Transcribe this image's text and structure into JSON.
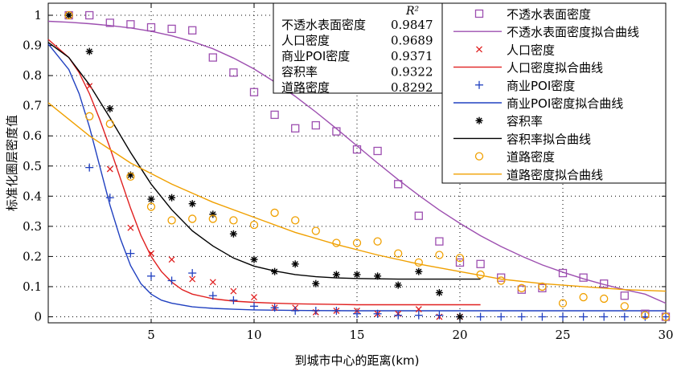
{
  "chart_data": {
    "type": "scatter",
    "xlabel": "到城市中心的距离(km)",
    "ylabel": "标准化圈层密度值",
    "xlim": [
      0,
      30
    ],
    "ylim": [
      -0.02,
      1.04
    ],
    "x_ticks": [
      "5",
      "10",
      "15",
      "20",
      "25",
      "30"
    ],
    "x_tick_values": [
      5,
      10,
      15,
      20,
      25,
      30
    ],
    "y_ticks": [
      "0",
      "0.1",
      "0.2",
      "0.3",
      "0.4",
      "0.5",
      "0.6",
      "0.7",
      "0.8",
      "0.9",
      "1"
    ],
    "y_tick_values": [
      0,
      0.1,
      0.2,
      0.3,
      0.4,
      0.5,
      0.6,
      0.7,
      0.8,
      0.9,
      1
    ],
    "grid": true,
    "legend_position": "top-right",
    "r2_table": {
      "header": "R²",
      "rows": [
        {
          "label": "不透水表面密度",
          "value": "0.9847"
        },
        {
          "label": "人口密度",
          "value": "0.9689"
        },
        {
          "label": "商业POI密度",
          "value": "0.9371"
        },
        {
          "label": "容积率",
          "value": "0.9322"
        },
        {
          "label": "道路密度",
          "value": "0.8292"
        }
      ]
    },
    "series": [
      {
        "name": "不透水表面密度",
        "fit_name": "不透水表面密度拟合曲线",
        "marker": "square",
        "color": "#9d4fb0",
        "x": [
          1,
          2,
          3,
          4,
          5,
          6,
          7,
          8,
          9,
          10,
          11,
          12,
          13,
          14,
          15,
          16,
          17,
          18,
          19,
          20,
          21,
          22,
          23,
          24,
          25,
          26,
          27,
          28,
          29,
          30
        ],
        "y": [
          1.0,
          1.0,
          0.975,
          0.97,
          0.96,
          0.955,
          0.95,
          0.86,
          0.81,
          0.745,
          0.67,
          0.625,
          0.635,
          0.615,
          0.555,
          0.55,
          0.44,
          0.335,
          0.25,
          0.18,
          0.175,
          0.13,
          0.09,
          0.095,
          0.145,
          0.13,
          0.11,
          0.07,
          0.01,
          0.0
        ],
        "fit_x": [
          0,
          1,
          2,
          3,
          4,
          5,
          6,
          7,
          8,
          9,
          10,
          11,
          12,
          13,
          14,
          15,
          16,
          17,
          18,
          19,
          20,
          21,
          22,
          23,
          24,
          25,
          26,
          27,
          28,
          29,
          30
        ],
        "fit_y": [
          0.98,
          0.977,
          0.972,
          0.966,
          0.958,
          0.947,
          0.932,
          0.913,
          0.889,
          0.858,
          0.822,
          0.779,
          0.731,
          0.679,
          0.624,
          0.567,
          0.51,
          0.455,
          0.403,
          0.354,
          0.31,
          0.269,
          0.233,
          0.201,
          0.172,
          0.148,
          0.126,
          0.107,
          0.09,
          0.075,
          0.045
        ]
      },
      {
        "name": "人口密度",
        "fit_name": "人口密度拟合曲线",
        "marker": "x",
        "color": "#e02020",
        "x": [
          1,
          2,
          3,
          4,
          5,
          6,
          7,
          8,
          9,
          10,
          11,
          12,
          13,
          14,
          15,
          16,
          17,
          18,
          19,
          20
        ],
        "y": [
          1.0,
          0.765,
          0.49,
          0.295,
          0.21,
          0.19,
          0.125,
          0.115,
          0.085,
          0.065,
          0.03,
          0.03,
          0.015,
          0.02,
          0.02,
          0.01,
          0.01,
          0.025,
          0.0,
          0.0
        ],
        "fit_x": [
          0,
          1,
          1.5,
          2,
          2.5,
          3,
          3.5,
          4,
          4.5,
          5,
          5.5,
          6,
          6.5,
          7,
          8,
          9,
          10,
          11,
          12,
          13,
          14,
          15,
          16,
          17,
          18,
          19,
          20,
          21
        ],
        "fit_y": [
          0.92,
          0.86,
          0.81,
          0.74,
          0.655,
          0.56,
          0.46,
          0.36,
          0.27,
          0.2,
          0.15,
          0.115,
          0.09,
          0.075,
          0.06,
          0.052,
          0.048,
          0.045,
          0.043,
          0.042,
          0.041,
          0.04,
          0.04,
          0.04,
          0.04,
          0.04,
          0.04,
          0.04
        ]
      },
      {
        "name": "商业POI密度",
        "fit_name": "商业POI密度拟合曲线",
        "marker": "plus",
        "color": "#2040c0",
        "x": [
          1,
          2,
          3,
          4,
          5,
          6,
          7,
          8,
          9,
          10,
          11,
          12,
          13,
          14,
          15,
          16,
          17,
          18,
          19,
          20,
          21,
          22,
          23,
          24,
          25,
          26,
          27,
          28,
          29,
          30
        ],
        "y": [
          1.0,
          0.495,
          0.395,
          0.21,
          0.135,
          0.12,
          0.145,
          0.07,
          0.055,
          0.035,
          0.03,
          0.02,
          0.02,
          0.02,
          0.01,
          0.01,
          0.005,
          0.005,
          0.005,
          0.0,
          0.0,
          0.0,
          0.0,
          0.0,
          0.0,
          0.0,
          0.0,
          0.0,
          0.0,
          0.0
        ],
        "fit_x": [
          0,
          1,
          1.5,
          2,
          2.5,
          3,
          3.5,
          4,
          4.5,
          5,
          5.5,
          6,
          7,
          8,
          9,
          10,
          12,
          15,
          20,
          25,
          30
        ],
        "fit_y": [
          0.905,
          0.82,
          0.74,
          0.63,
          0.5,
          0.37,
          0.26,
          0.17,
          0.11,
          0.075,
          0.055,
          0.045,
          0.033,
          0.028,
          0.025,
          0.023,
          0.021,
          0.02,
          0.02,
          0.02,
          0.02
        ]
      },
      {
        "name": "容积率",
        "fit_name": "容积率拟合曲线",
        "marker": "star",
        "color": "#000000",
        "x": [
          1,
          2,
          3,
          4,
          5,
          6,
          7,
          8,
          9,
          10,
          11,
          12,
          13,
          14,
          15,
          16,
          17,
          18,
          19,
          20
        ],
        "y": [
          1.0,
          0.88,
          0.69,
          0.47,
          0.39,
          0.395,
          0.375,
          0.34,
          0.275,
          0.19,
          0.15,
          0.175,
          0.11,
          0.14,
          0.14,
          0.135,
          0.105,
          0.15,
          0.08,
          0.0
        ],
        "fit_x": [
          0,
          1,
          2,
          3,
          4,
          5,
          6,
          7,
          8,
          9,
          10,
          11,
          12,
          13,
          14,
          15,
          16,
          17,
          18,
          19,
          20,
          21
        ],
        "fit_y": [
          0.91,
          0.86,
          0.77,
          0.66,
          0.545,
          0.44,
          0.355,
          0.285,
          0.235,
          0.195,
          0.168,
          0.152,
          0.14,
          0.133,
          0.129,
          0.127,
          0.126,
          0.125,
          0.125,
          0.125,
          0.125,
          0.125
        ]
      },
      {
        "name": "道路密度",
        "fit_name": "道路密度拟合曲线",
        "marker": "circle",
        "color": "#f0a000",
        "x": [
          1,
          2,
          3,
          4,
          5,
          6,
          7,
          8,
          9,
          10,
          11,
          12,
          13,
          14,
          15,
          16,
          17,
          18,
          19,
          20,
          21,
          22,
          23,
          24,
          25,
          26,
          27,
          28,
          29,
          30
        ],
        "y": [
          1.0,
          0.665,
          0.64,
          0.465,
          0.365,
          0.32,
          0.325,
          0.325,
          0.32,
          0.305,
          0.345,
          0.32,
          0.285,
          0.245,
          0.245,
          0.25,
          0.21,
          0.18,
          0.205,
          0.195,
          0.14,
          0.12,
          0.095,
          0.1,
          0.045,
          0.065,
          0.06,
          0.035,
          0.005,
          0.0
        ],
        "fit_x": [
          0,
          2,
          4,
          6,
          8,
          10,
          12,
          14,
          16,
          18,
          20,
          22,
          24,
          26,
          28,
          30
        ],
        "fit_y": [
          0.71,
          0.6,
          0.51,
          0.44,
          0.38,
          0.33,
          0.28,
          0.24,
          0.205,
          0.175,
          0.15,
          0.125,
          0.11,
          0.1,
          0.09,
          0.085
        ]
      }
    ]
  }
}
